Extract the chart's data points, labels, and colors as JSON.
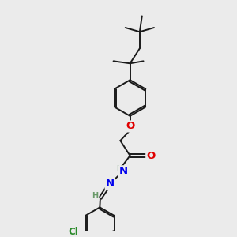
{
  "bg_color": "#ebebeb",
  "bond_color": "#1a1a1a",
  "bond_width": 1.4,
  "atom_colors": {
    "O": "#e00000",
    "N": "#0000ee",
    "Cl": "#2a8a2a",
    "H": "#6a9a6a",
    "C": "#1a1a1a"
  },
  "font_size_atom": 8.5,
  "font_size_h": 7.0,
  "font_size_cl": 8.5
}
